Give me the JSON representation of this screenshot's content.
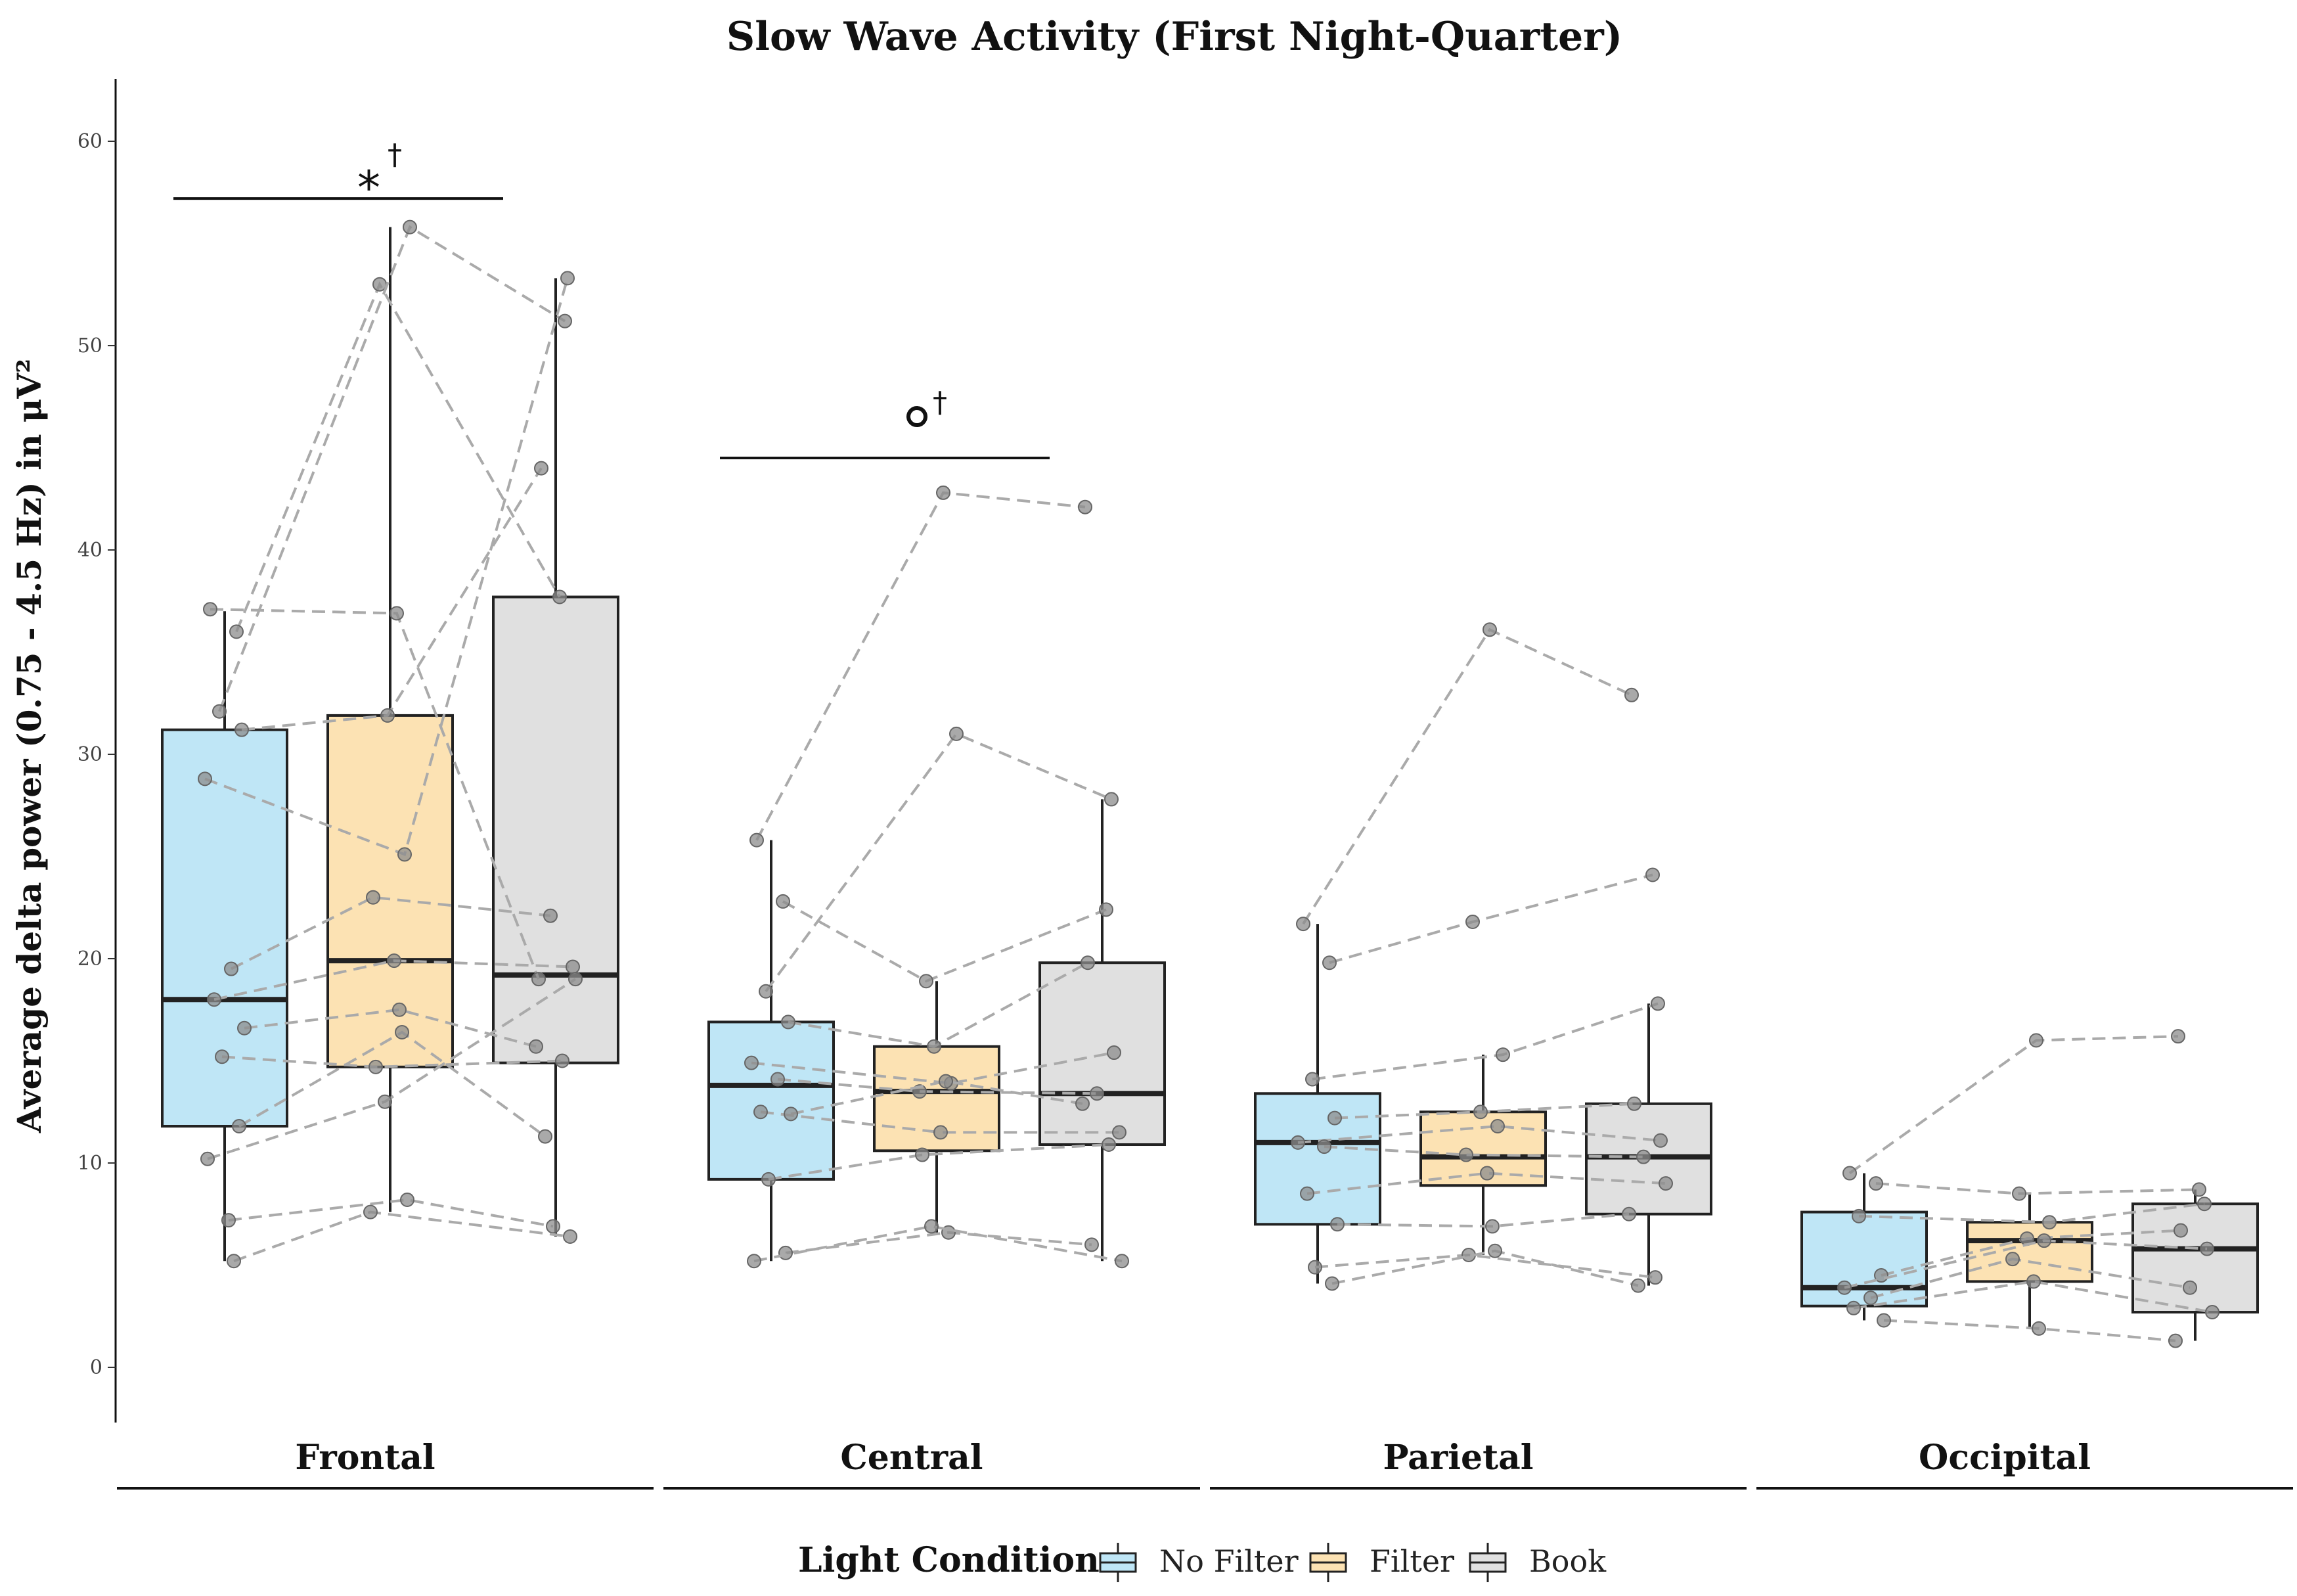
{
  "chart_data": {
    "type": "box",
    "title": "Slow Wave Activity (First Night-Quarter)",
    "ylabel": "Average delta power (0.75 - 4.5 Hz) in μV²",
    "xlabel": "",
    "ylim": [
      -3,
      63
    ],
    "yticks": [
      0,
      10,
      20,
      30,
      40,
      50,
      60
    ],
    "legend": {
      "title": "Light Condition",
      "position": "bottom",
      "entries": [
        {
          "name": "No Filter",
          "color": "#bfe6f6"
        },
        {
          "name": "Filter",
          "color": "#fce2b3"
        },
        {
          "name": "Book",
          "color": "#e0e0e0"
        }
      ]
    },
    "regions": [
      {
        "name": "Frontal",
        "significance": {
          "symbol": "*",
          "sup": "†",
          "y": 57.2
        },
        "boxes": [
          {
            "condition": "No Filter",
            "q1": 11.8,
            "median": 18.0,
            "q3": 31.2,
            "whisker_low": 5.2,
            "whisker_high": 37.0
          },
          {
            "condition": "Filter",
            "q1": 14.7,
            "median": 19.9,
            "q3": 31.9,
            "whisker_low": 7.6,
            "whisker_high": 55.8
          },
          {
            "condition": "Book",
            "q1": 14.9,
            "median": 19.2,
            "q3": 37.7,
            "whisker_low": 6.4,
            "whisker_high": 53.3
          }
        ],
        "subjects": [
          [
            37.1,
            36.9,
            19.0
          ],
          [
            36.0,
            53.0,
            37.7
          ],
          [
            32.1,
            55.8,
            51.2
          ],
          [
            31.2,
            31.9,
            44.0
          ],
          [
            28.8,
            25.1,
            53.3
          ],
          [
            19.5,
            23.0,
            22.1
          ],
          [
            18.0,
            19.9,
            19.6
          ],
          [
            16.6,
            17.5,
            15.7
          ],
          [
            15.2,
            14.7,
            15.0
          ],
          [
            11.8,
            16.4,
            11.3
          ],
          [
            10.2,
            13.0,
            19.0
          ],
          [
            7.2,
            8.2,
            6.9
          ],
          [
            5.2,
            7.6,
            6.4
          ]
        ]
      },
      {
        "name": "Central",
        "significance": {
          "symbol": "o",
          "sup": "†",
          "y": 44.5
        },
        "boxes": [
          {
            "condition": "No Filter",
            "q1": 9.2,
            "median": 13.8,
            "q3": 16.9,
            "whisker_low": 5.2,
            "whisker_high": 25.8
          },
          {
            "condition": "Filter",
            "q1": 10.6,
            "median": 13.5,
            "q3": 15.7,
            "whisker_low": 6.6,
            "whisker_high": 18.9
          },
          {
            "condition": "Book",
            "q1": 10.9,
            "median": 13.4,
            "q3": 19.8,
            "whisker_low": 5.2,
            "whisker_high": 27.8
          }
        ],
        "subjects": [
          [
            25.8,
            42.8,
            42.1
          ],
          [
            22.8,
            18.9,
            22.4
          ],
          [
            18.4,
            31.0,
            27.8
          ],
          [
            16.9,
            15.7,
            19.8
          ],
          [
            14.9,
            13.9,
            15.4
          ],
          [
            14.1,
            13.5,
            13.4
          ],
          [
            12.5,
            11.5,
            11.5
          ],
          [
            12.4,
            14.0,
            12.9
          ],
          [
            9.2,
            10.4,
            10.9
          ],
          [
            5.6,
            6.6,
            6.0
          ],
          [
            5.2,
            6.9,
            5.2
          ]
        ]
      },
      {
        "name": "Parietal",
        "significance": null,
        "boxes": [
          {
            "condition": "No Filter",
            "q1": 7.0,
            "median": 11.0,
            "q3": 13.4,
            "whisker_low": 4.1,
            "whisker_high": 21.7
          },
          {
            "condition": "Filter",
            "q1": 8.9,
            "median": 10.3,
            "q3": 12.5,
            "whisker_low": 5.5,
            "whisker_high": 15.3
          },
          {
            "condition": "Book",
            "q1": 7.5,
            "median": 10.3,
            "q3": 12.9,
            "whisker_low": 4.0,
            "whisker_high": 17.8
          }
        ],
        "subjects": [
          [
            21.7,
            36.1,
            32.9
          ],
          [
            19.8,
            21.8,
            24.1
          ],
          [
            14.1,
            15.3,
            17.8
          ],
          [
            12.2,
            12.5,
            12.9
          ],
          [
            11.0,
            11.8,
            11.1
          ],
          [
            10.8,
            10.4,
            10.3
          ],
          [
            8.5,
            9.5,
            9.0
          ],
          [
            7.0,
            6.9,
            7.5
          ],
          [
            4.9,
            5.5,
            4.4
          ],
          [
            4.1,
            5.7,
            4.0
          ]
        ]
      },
      {
        "name": "Occipital",
        "significance": null,
        "boxes": [
          {
            "condition": "No Filter",
            "q1": 3.0,
            "median": 3.9,
            "q3": 7.6,
            "whisker_low": 2.3,
            "whisker_high": 9.5
          },
          {
            "condition": "Filter",
            "q1": 4.2,
            "median": 6.2,
            "q3": 7.1,
            "whisker_low": 1.9,
            "whisker_high": 8.5
          },
          {
            "condition": "Book",
            "q1": 2.7,
            "median": 5.8,
            "q3": 8.0,
            "whisker_low": 1.3,
            "whisker_high": 8.7
          }
        ],
        "subjects": [
          [
            9.5,
            16.0,
            16.2
          ],
          [
            9.0,
            8.5,
            8.7
          ],
          [
            7.4,
            7.1,
            8.0
          ],
          [
            4.5,
            6.3,
            6.7
          ],
          [
            3.9,
            6.2,
            5.8
          ],
          [
            3.4,
            5.3,
            3.9
          ],
          [
            2.9,
            4.2,
            2.7
          ],
          [
            2.3,
            1.9,
            1.3
          ]
        ]
      }
    ]
  }
}
